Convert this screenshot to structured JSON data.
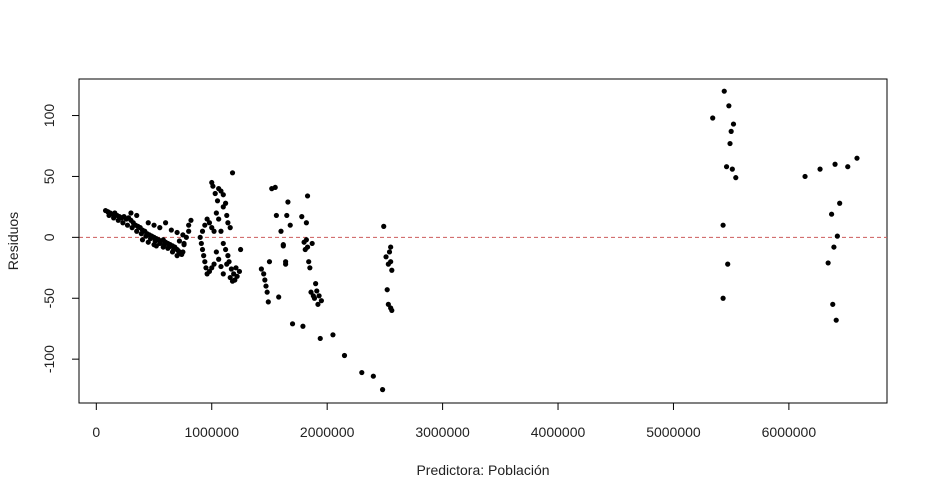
{
  "chart_data": {
    "type": "scatter",
    "title": "",
    "xlabel": "Predictora: Población",
    "ylabel": "Residuos",
    "xlim": [
      -150000,
      6850000
    ],
    "ylim": [
      -136,
      130
    ],
    "x_ticks": [
      0,
      1000000,
      2000000,
      3000000,
      4000000,
      5000000,
      6000000
    ],
    "x_tick_labels": [
      "0",
      "1000000",
      "2000000",
      "3000000",
      "4000000",
      "5000000",
      "6000000"
    ],
    "y_ticks": [
      -100,
      -50,
      0,
      50,
      100
    ],
    "y_tick_labels": [
      "-100",
      "-50",
      "0",
      "50",
      "100"
    ],
    "reference_line": {
      "y": 0,
      "style": "dashed",
      "color": "#cd5c5c"
    },
    "point_color": "#000000",
    "grid": false,
    "series": [
      {
        "values": [
          [
            80000,
            22
          ],
          [
            100000,
            21
          ],
          [
            120000,
            20
          ],
          [
            140000,
            19
          ],
          [
            160000,
            20
          ],
          [
            180000,
            18
          ],
          [
            200000,
            17
          ],
          [
            220000,
            16
          ],
          [
            240000,
            17
          ],
          [
            260000,
            15
          ],
          [
            280000,
            16
          ],
          [
            300000,
            14
          ],
          [
            320000,
            12
          ],
          [
            340000,
            10
          ],
          [
            360000,
            9
          ],
          [
            380000,
            8
          ],
          [
            400000,
            6
          ],
          [
            420000,
            5
          ],
          [
            440000,
            3
          ],
          [
            460000,
            2
          ],
          [
            480000,
            1
          ],
          [
            500000,
            0
          ],
          [
            520000,
            -1
          ],
          [
            540000,
            -2
          ],
          [
            560000,
            -3
          ],
          [
            580000,
            -2
          ],
          [
            600000,
            -4
          ],
          [
            620000,
            -5
          ],
          [
            640000,
            -6
          ],
          [
            660000,
            -7
          ],
          [
            680000,
            -8
          ],
          [
            700000,
            -10
          ],
          [
            720000,
            -12
          ],
          [
            740000,
            -14
          ],
          [
            760000,
            -5
          ],
          [
            780000,
            0
          ],
          [
            800000,
            5
          ],
          [
            110000,
            18
          ],
          [
            150000,
            16
          ],
          [
            190000,
            14
          ],
          [
            230000,
            12
          ],
          [
            270000,
            10
          ],
          [
            310000,
            8
          ],
          [
            350000,
            5
          ],
          [
            390000,
            3
          ],
          [
            430000,
            1
          ],
          [
            470000,
            -1
          ],
          [
            510000,
            -3
          ],
          [
            550000,
            -5
          ],
          [
            590000,
            -6
          ],
          [
            630000,
            -8
          ],
          [
            670000,
            -10
          ],
          [
            710000,
            -11
          ],
          [
            750000,
            -12
          ],
          [
            300000,
            20
          ],
          [
            350000,
            18
          ],
          [
            450000,
            12
          ],
          [
            500000,
            10
          ],
          [
            550000,
            8
          ],
          [
            600000,
            12
          ],
          [
            650000,
            6
          ],
          [
            700000,
            4
          ],
          [
            750000,
            2
          ],
          [
            800000,
            10
          ],
          [
            820000,
            14
          ],
          [
            400000,
            -2
          ],
          [
            450000,
            -4
          ],
          [
            500000,
            -6
          ],
          [
            520000,
            -7
          ],
          [
            580000,
            -8
          ],
          [
            620000,
            -9
          ],
          [
            660000,
            -12
          ],
          [
            700000,
            -15
          ],
          [
            720000,
            -3
          ],
          [
            760000,
            -6
          ],
          [
            900000,
            0
          ],
          [
            910000,
            -5
          ],
          [
            920000,
            -10
          ],
          [
            930000,
            -15
          ],
          [
            940000,
            -20
          ],
          [
            950000,
            -25
          ],
          [
            960000,
            -30
          ],
          [
            980000,
            -28
          ],
          [
            1000000,
            -25
          ],
          [
            1020000,
            -22
          ],
          [
            920000,
            5
          ],
          [
            940000,
            10
          ],
          [
            960000,
            15
          ],
          [
            980000,
            12
          ],
          [
            1000000,
            8
          ],
          [
            1020000,
            5
          ],
          [
            1040000,
            -12
          ],
          [
            1060000,
            -18
          ],
          [
            1080000,
            -24
          ],
          [
            1100000,
            -30
          ],
          [
            1000000,
            45
          ],
          [
            1010000,
            42
          ],
          [
            1030000,
            36
          ],
          [
            1060000,
            40
          ],
          [
            1050000,
            30
          ],
          [
            1080000,
            38
          ],
          [
            1100000,
            35
          ],
          [
            1120000,
            28
          ],
          [
            1040000,
            20
          ],
          [
            1060000,
            15
          ],
          [
            1100000,
            25
          ],
          [
            1130000,
            18
          ],
          [
            1140000,
            12
          ],
          [
            1160000,
            8
          ],
          [
            1180000,
            53
          ],
          [
            1080000,
            5
          ],
          [
            1100000,
            -5
          ],
          [
            1120000,
            -10
          ],
          [
            1140000,
            -15
          ],
          [
            1150000,
            -20
          ],
          [
            1170000,
            -26
          ],
          [
            1190000,
            -30
          ],
          [
            1200000,
            -35
          ],
          [
            1220000,
            -32
          ],
          [
            1240000,
            -28
          ],
          [
            1250000,
            -10
          ],
          [
            1130000,
            -22
          ],
          [
            1160000,
            -33
          ],
          [
            1180000,
            -36
          ],
          [
            1210000,
            -25
          ],
          [
            1430000,
            -26
          ],
          [
            1450000,
            -30
          ],
          [
            1460000,
            -35
          ],
          [
            1470000,
            -40
          ],
          [
            1480000,
            -45
          ],
          [
            1490000,
            -53
          ],
          [
            1500000,
            -20
          ],
          [
            1520000,
            40
          ],
          [
            1550000,
            41
          ],
          [
            1560000,
            18
          ],
          [
            1580000,
            -49
          ],
          [
            1600000,
            5
          ],
          [
            1620000,
            -7
          ],
          [
            1640000,
            -20
          ],
          [
            1650000,
            18
          ],
          [
            1660000,
            29
          ],
          [
            1680000,
            10
          ],
          [
            1700000,
            -71
          ],
          [
            1620000,
            -6
          ],
          [
            1640000,
            -22
          ],
          [
            1780000,
            17
          ],
          [
            1790000,
            -73
          ],
          [
            1800000,
            -4
          ],
          [
            1810000,
            -10
          ],
          [
            1820000,
            12
          ],
          [
            1830000,
            34
          ],
          [
            1840000,
            -20
          ],
          [
            1850000,
            -25
          ],
          [
            1860000,
            -45
          ],
          [
            1870000,
            -5
          ],
          [
            1880000,
            -48
          ],
          [
            1890000,
            -50
          ],
          [
            1900000,
            -38
          ],
          [
            1910000,
            -44
          ],
          [
            1920000,
            -55
          ],
          [
            1930000,
            -48
          ],
          [
            1940000,
            -83
          ],
          [
            1950000,
            -52
          ],
          [
            1820000,
            -2
          ],
          [
            1830000,
            -8
          ],
          [
            2050000,
            -80
          ],
          [
            2150000,
            -97
          ],
          [
            2300000,
            -111
          ],
          [
            2400000,
            -114
          ],
          [
            2480000,
            -125
          ],
          [
            2490000,
            9
          ],
          [
            2510000,
            -16
          ],
          [
            2520000,
            -43
          ],
          [
            2530000,
            -22
          ],
          [
            2540000,
            -12
          ],
          [
            2550000,
            -20
          ],
          [
            2530000,
            -55
          ],
          [
            2550000,
            -58
          ],
          [
            2560000,
            -60
          ],
          [
            2560000,
            -27
          ],
          [
            2550000,
            -8
          ],
          [
            5340000,
            98
          ],
          [
            5440000,
            120
          ],
          [
            5460000,
            58
          ],
          [
            5480000,
            108
          ],
          [
            5490000,
            77
          ],
          [
            5500000,
            87
          ],
          [
            5510000,
            56
          ],
          [
            5520000,
            93
          ],
          [
            5540000,
            49
          ],
          [
            5430000,
            10
          ],
          [
            5470000,
            -22
          ],
          [
            5430000,
            -50
          ],
          [
            6140000,
            50
          ],
          [
            6270000,
            56
          ],
          [
            6340000,
            -21
          ],
          [
            6370000,
            19
          ],
          [
            6380000,
            -55
          ],
          [
            6390000,
            -8
          ],
          [
            6400000,
            60
          ],
          [
            6410000,
            -68
          ],
          [
            6420000,
            1
          ],
          [
            6440000,
            28
          ],
          [
            6510000,
            58
          ],
          [
            6590000,
            65
          ]
        ]
      }
    ]
  }
}
